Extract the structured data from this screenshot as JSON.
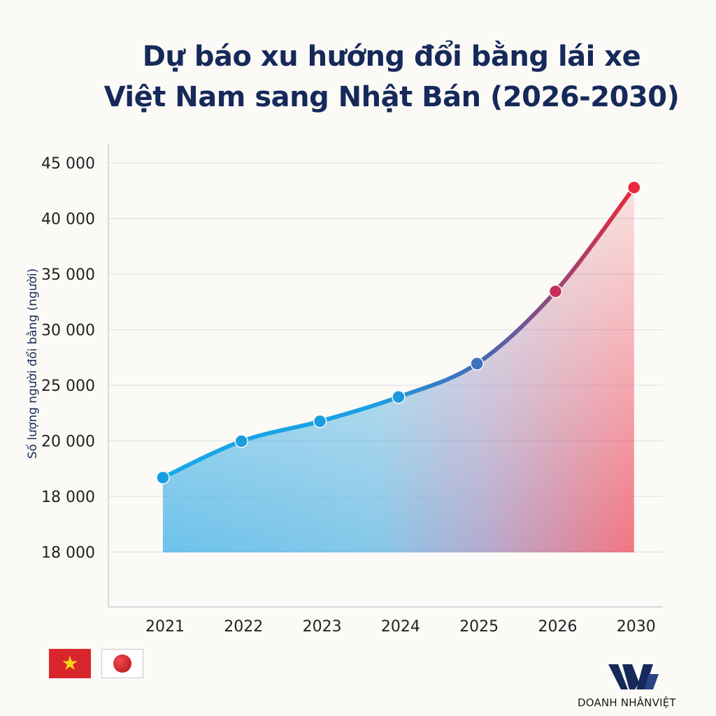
{
  "chart_data": {
    "type": "area",
    "title_line1": "Dự báo xu hướng đổi bằng lái xe",
    "title_line2": "Việt Nam sang Nhật Bán (2026-2030)",
    "ylabel": "Số lượng người đổi bằng (người)",
    "categories": [
      "2021",
      "2022",
      "2023",
      "2024",
      "2025",
      "2026",
      "2030"
    ],
    "values": [
      18700,
      20000,
      21800,
      24000,
      27000,
      33500,
      42800
    ],
    "y_ticks": [
      "45 000",
      "40 000",
      "35 000",
      "30 000",
      "25 000",
      "20 000",
      "18 000",
      "18 000"
    ],
    "grid": true,
    "colors": {
      "start": "#1aa5e6",
      "mid": "#4a5fb0",
      "end": "#e8283c"
    }
  },
  "flags": {
    "left": "vietnam-flag",
    "right": "japan-flag"
  },
  "brand": {
    "name": "DOANH NHÂNVIỆT"
  }
}
